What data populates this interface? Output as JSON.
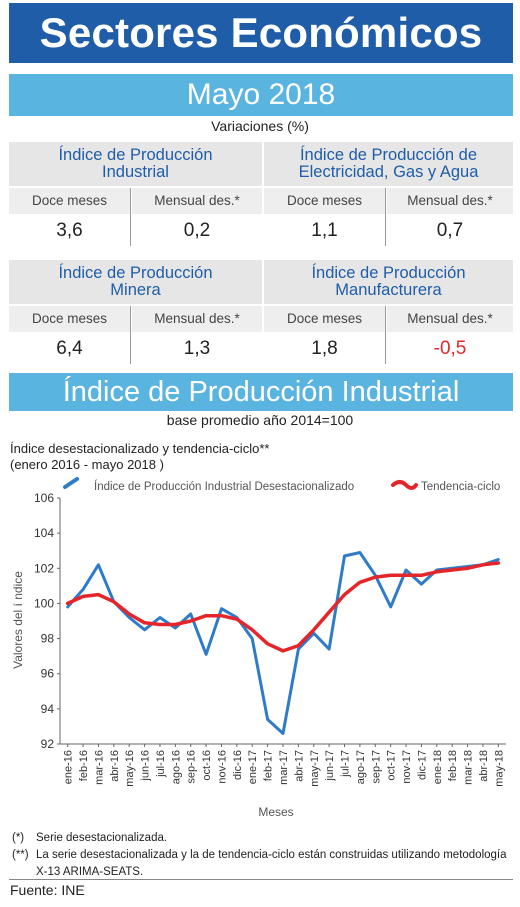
{
  "header": {
    "title": "Sectores Económicos",
    "period": "Mayo 2018",
    "variaciones": "Variaciones (%)"
  },
  "panels": {
    "industrial": {
      "title_line1": "Índice de Producción",
      "title_line2": "Industrial",
      "col1": "Doce meses",
      "col2": "Mensual des.*",
      "val1": "3,6",
      "val2": "0,2"
    },
    "electricidad": {
      "title_line1": "Índice de Producción de",
      "title_line2": "Electricidad, Gas y Agua",
      "col1": "Doce meses",
      "col2": "Mensual des.*",
      "val1": "1,1",
      "val2": "0,7"
    },
    "minera": {
      "title_line1": "Índice de Producción",
      "title_line2": "Minera",
      "col1": "Doce meses",
      "col2": "Mensual des.*",
      "val1": "6,4",
      "val2": "1,3"
    },
    "manufacturera": {
      "title_line1": "Índice de Producción",
      "title_line2": "Manufacturera",
      "col1": "Doce meses",
      "col2": "Mensual des.*",
      "val1": "1,8",
      "val2": "-0,5"
    }
  },
  "section": {
    "title": "Índice de Producción Industrial",
    "base": "base promedio año 2014=100"
  },
  "chart_data": {
    "type": "line",
    "title_line1": "Índice desestacionalizado y tendencia-ciclo**",
    "title_line2": "(enero 2016 - mayo 2018 )",
    "xlabel": "Meses",
    "ylabel": "Valores del í ndice",
    "ylim": [
      92,
      106
    ],
    "yticks": [
      92,
      94,
      96,
      98,
      100,
      102,
      104,
      106
    ],
    "grid": false,
    "legend_position": "top",
    "categories": [
      "ene-16",
      "feb-16",
      "mar-16",
      "abr-16",
      "may-16",
      "jun-16",
      "jul-16",
      "ago-16",
      "sep-16",
      "oct-16",
      "nov-16",
      "dic-16",
      "ene-17",
      "feb-17",
      "mar-17",
      "abr-17",
      "may-17",
      "jun-17",
      "jul-17",
      "ago-17",
      "sep-17",
      "oct-17",
      "nov-17",
      "dic-17",
      "ene-18",
      "feb-18",
      "mar-18",
      "abr-18",
      "may-18"
    ],
    "series": [
      {
        "name": "Índice de Producción Industrial Desestacionalizado",
        "color": "#2e7bc9",
        "values": [
          99.8,
          100.8,
          102.2,
          100.1,
          99.2,
          98.5,
          99.2,
          98.6,
          99.4,
          97.1,
          99.7,
          99.2,
          98.0,
          93.4,
          92.6,
          97.4,
          98.3,
          97.4,
          102.7,
          102.9,
          101.6,
          99.8,
          101.9,
          101.1,
          101.9,
          102.0,
          102.1,
          102.2,
          102.5
        ]
      },
      {
        "name": "Tendencia-ciclo",
        "color": "#e4262b",
        "values": [
          100.0,
          100.4,
          100.5,
          100.1,
          99.4,
          98.9,
          98.8,
          98.8,
          99.0,
          99.3,
          99.3,
          99.1,
          98.5,
          97.7,
          97.3,
          97.6,
          98.5,
          99.5,
          100.5,
          101.2,
          101.5,
          101.6,
          101.6,
          101.6,
          101.8,
          101.9,
          102.0,
          102.2,
          102.3
        ]
      }
    ]
  },
  "notes": [
    {
      "mark": "(*)",
      "text": "Serie desestacionalizada."
    },
    {
      "mark": "(**)",
      "text": "La serie desestacionalizada y la de tendencia-ciclo están construidas utilizando metodología X-13 ARIMA-SEATS."
    }
  ],
  "source": "Fuente: INE",
  "colors": {
    "dark_blue": "#1f5da8",
    "light_blue": "#5ab4e0",
    "series_blue": "#2e7bc9",
    "series_red": "#e4262b",
    "negative": "#e8262a"
  }
}
